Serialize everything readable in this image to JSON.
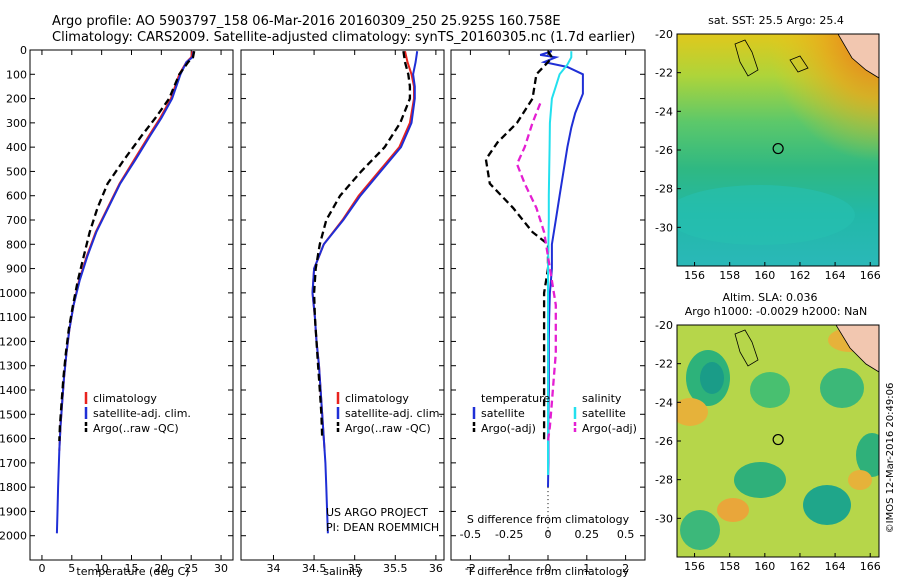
{
  "header": {
    "line1": "Argo profile: AO 5903797_158 06-Mar-2016 20160309_250 25.925S 160.758E",
    "line2": "Climatology: CARS2009. Satellite-adjusted climatology: synTS_20160305.nc (1.7d earlier)"
  },
  "credit": {
    "project": "US ARGO PROJECT",
    "pi": "PI: DEAN ROEMMICH",
    "stamp": "©IMOS 12-Mar-2016 20:49:06"
  },
  "colors": {
    "climatology": "#e8231e",
    "satellite": "#1f2fd6",
    "argo": "#000000",
    "sal_satellite": "#22e0ee",
    "sal_argo": "#e41fd2"
  },
  "chart_data": [
    {
      "id": "temperature",
      "type": "line",
      "xlabel": "temperature (deg C)",
      "ylabel": "",
      "xlim": [
        -2,
        32
      ],
      "ylim": [
        2100,
        0
      ],
      "xticks": [
        0,
        5,
        10,
        15,
        20,
        25,
        30
      ],
      "yticks": [
        0,
        100,
        200,
        300,
        400,
        500,
        600,
        700,
        800,
        900,
        1000,
        1100,
        1200,
        1300,
        1400,
        1500,
        1600,
        1700,
        1800,
        1900,
        2000
      ],
      "legend": [
        "climatology",
        "satellite-adj. clim.",
        "Argo(..raw -QC)"
      ],
      "legend_position": "lower-right",
      "series": [
        {
          "name": "climatology",
          "style": "solid",
          "color": "#e8231e",
          "points": [
            [
              25.2,
              5
            ],
            [
              25.0,
              30
            ],
            [
              24.2,
              50
            ],
            [
              23.0,
              100
            ],
            [
              21.6,
              200
            ],
            [
              19.8,
              280
            ],
            [
              18.0,
              350
            ],
            [
              15.5,
              450
            ],
            [
              13.0,
              550
            ],
            [
              11.0,
              650
            ],
            [
              9.0,
              750
            ],
            [
              7.5,
              850
            ],
            [
              6.2,
              950
            ],
            [
              5.3,
              1050
            ],
            [
              4.6,
              1150
            ],
            [
              4.1,
              1250
            ],
            [
              3.7,
              1350
            ],
            [
              3.4,
              1450
            ],
            [
              3.1,
              1550
            ],
            [
              2.9,
              1650
            ]
          ]
        },
        {
          "name": "satellite-adj. clim.",
          "style": "solid",
          "color": "#1f2fd6",
          "points": [
            [
              25.4,
              5
            ],
            [
              25.2,
              30
            ],
            [
              24.2,
              50
            ],
            [
              23.2,
              100
            ],
            [
              21.8,
              200
            ],
            [
              20.0,
              280
            ],
            [
              18.2,
              350
            ],
            [
              15.7,
              450
            ],
            [
              13.1,
              550
            ],
            [
              11.1,
              650
            ],
            [
              9.1,
              750
            ],
            [
              7.6,
              850
            ],
            [
              6.3,
              950
            ],
            [
              5.3,
              1050
            ],
            [
              4.6,
              1150
            ],
            [
              4.1,
              1250
            ],
            [
              3.7,
              1350
            ],
            [
              3.4,
              1450
            ],
            [
              3.1,
              1550
            ],
            [
              2.9,
              1650
            ],
            [
              2.7,
              1800
            ],
            [
              2.6,
              1900
            ],
            [
              2.5,
              1990
            ]
          ]
        },
        {
          "name": "Argo(..raw -QC)",
          "style": "dashed",
          "color": "#000000",
          "points": [
            [
              25.5,
              5
            ],
            [
              25.3,
              30
            ],
            [
              24.5,
              50
            ],
            [
              23.0,
              100
            ],
            [
              21.3,
              200
            ],
            [
              19.0,
              280
            ],
            [
              16.8,
              350
            ],
            [
              13.8,
              450
            ],
            [
              11.0,
              550
            ],
            [
              9.3,
              650
            ],
            [
              8.0,
              750
            ],
            [
              7.0,
              850
            ],
            [
              6.0,
              950
            ],
            [
              5.2,
              1050
            ],
            [
              4.5,
              1150
            ],
            [
              4.0,
              1250
            ],
            [
              3.6,
              1350
            ],
            [
              3.3,
              1450
            ],
            [
              3.0,
              1550
            ],
            [
              2.9,
              1610
            ]
          ]
        }
      ]
    },
    {
      "id": "salinity",
      "type": "line",
      "xlabel": "salinity",
      "ylabel": "",
      "xlim": [
        33.6,
        36.1
      ],
      "ylim": [
        2100,
        0
      ],
      "xticks": [
        34,
        34.5,
        35,
        35.5,
        36
      ],
      "legend": [
        "climatology",
        "satellite-adj. clim.",
        "Argo(..raw -QC)"
      ],
      "legend_position": "lower-right",
      "series": [
        {
          "name": "climatology",
          "style": "solid",
          "color": "#e8231e",
          "points": [
            [
              35.62,
              5
            ],
            [
              35.65,
              50
            ],
            [
              35.7,
              100
            ],
            [
              35.73,
              150
            ],
            [
              35.73,
              200
            ],
            [
              35.68,
              300
            ],
            [
              35.55,
              400
            ],
            [
              35.3,
              500
            ],
            [
              35.05,
              600
            ],
            [
              34.85,
              700
            ],
            [
              34.62,
              800
            ],
            [
              34.5,
              900
            ],
            [
              34.48,
              1000
            ],
            [
              34.51,
              1100
            ],
            [
              34.53,
              1200
            ],
            [
              34.56,
              1300
            ],
            [
              34.58,
              1400
            ],
            [
              34.6,
              1500
            ],
            [
              34.62,
              1600
            ],
            [
              34.63,
              1650
            ]
          ]
        },
        {
          "name": "satellite-adj. clim.",
          "style": "solid",
          "color": "#1f2fd6",
          "points": [
            [
              35.77,
              5
            ],
            [
              35.75,
              50
            ],
            [
              35.72,
              100
            ],
            [
              35.74,
              150
            ],
            [
              35.74,
              200
            ],
            [
              35.7,
              300
            ],
            [
              35.57,
              400
            ],
            [
              35.32,
              500
            ],
            [
              35.07,
              600
            ],
            [
              34.86,
              700
            ],
            [
              34.62,
              800
            ],
            [
              34.5,
              900
            ],
            [
              34.48,
              1000
            ],
            [
              34.51,
              1100
            ],
            [
              34.53,
              1200
            ],
            [
              34.56,
              1300
            ],
            [
              34.58,
              1400
            ],
            [
              34.6,
              1500
            ],
            [
              34.62,
              1600
            ],
            [
              34.64,
              1700
            ],
            [
              34.65,
              1800
            ],
            [
              34.66,
              1900
            ],
            [
              34.67,
              1990
            ]
          ]
        },
        {
          "name": "Argo(..raw -QC)",
          "style": "dashed",
          "color": "#000000",
          "points": [
            [
              35.6,
              5
            ],
            [
              35.62,
              50
            ],
            [
              35.66,
              100
            ],
            [
              35.68,
              150
            ],
            [
              35.68,
              200
            ],
            [
              35.56,
              300
            ],
            [
              35.37,
              400
            ],
            [
              35.08,
              500
            ],
            [
              34.82,
              600
            ],
            [
              34.65,
              700
            ],
            [
              34.57,
              800
            ],
            [
              34.52,
              900
            ],
            [
              34.5,
              1000
            ],
            [
              34.51,
              1100
            ],
            [
              34.53,
              1200
            ],
            [
              34.55,
              1300
            ],
            [
              34.57,
              1400
            ],
            [
              34.59,
              1500
            ],
            [
              34.6,
              1600
            ]
          ]
        }
      ]
    },
    {
      "id": "difference",
      "type": "line",
      "xlabel": "T difference from climatology",
      "x2label": "S difference from climatology",
      "xlim": [
        -2.5,
        2.5
      ],
      "x2lim": [
        -0.625,
        0.625
      ],
      "ylim": [
        2100,
        0
      ],
      "xticks": [
        -2,
        -1,
        0,
        1,
        2
      ],
      "x2ticks": [
        "-0.5",
        "-0.25",
        "0",
        "0.25",
        "0.5"
      ],
      "legend_temperature": {
        "header": "temperature",
        "items": [
          "satellite",
          "Argo(-adj)"
        ]
      },
      "legend_salinity": {
        "header": "salinity",
        "items": [
          "satellite",
          "Argo(-adj)"
        ]
      },
      "series": [
        {
          "name": "temperature satellite",
          "style": "solid",
          "color": "#1f2fd6",
          "points": [
            [
              0.1,
              5
            ],
            [
              -0.2,
              20
            ],
            [
              0.2,
              30
            ],
            [
              -0.1,
              50
            ],
            [
              0.5,
              70
            ],
            [
              0.9,
              100
            ],
            [
              0.9,
              180
            ],
            [
              0.7,
              260
            ],
            [
              0.6,
              320
            ],
            [
              0.5,
              400
            ],
            [
              0.4,
              500
            ],
            [
              0.3,
              600
            ],
            [
              0.2,
              700
            ],
            [
              0.1,
              800
            ],
            [
              0.1,
              900
            ],
            [
              0.05,
              1000
            ],
            [
              0.03,
              1100
            ],
            [
              0.02,
              1200
            ],
            [
              0.02,
              1300
            ],
            [
              0.02,
              1400
            ],
            [
              0.01,
              1500
            ],
            [
              0.01,
              1600
            ],
            [
              0.01,
              1700
            ],
            [
              0.0,
              1800
            ]
          ]
        },
        {
          "name": "temperature Argo(-adj)",
          "style": "dashed",
          "color": "#000000",
          "points": [
            [
              0.0,
              5
            ],
            [
              0.1,
              30
            ],
            [
              0.0,
              50
            ],
            [
              -0.3,
              100
            ],
            [
              -0.4,
              200
            ],
            [
              -0.8,
              300
            ],
            [
              -1.3,
              380
            ],
            [
              -1.6,
              450
            ],
            [
              -1.5,
              550
            ],
            [
              -0.9,
              650
            ],
            [
              -0.4,
              750
            ],
            [
              0.0,
              800
            ],
            [
              0.0,
              900
            ],
            [
              -0.1,
              1000
            ],
            [
              -0.1,
              1100
            ],
            [
              -0.1,
              1200
            ],
            [
              -0.1,
              1300
            ],
            [
              -0.1,
              1400
            ],
            [
              -0.1,
              1500
            ],
            [
              -0.1,
              1610
            ]
          ]
        },
        {
          "name": "salinity satellite",
          "style": "solid",
          "color": "#22e0ee",
          "points": [
            [
              0.6,
              5
            ],
            [
              0.6,
              30
            ],
            [
              0.5,
              60
            ],
            [
              0.3,
              100
            ],
            [
              0.2,
              150
            ],
            [
              0.1,
              200
            ],
            [
              0.05,
              300
            ],
            [
              0.04,
              400
            ],
            [
              0.03,
              500
            ],
            [
              0.02,
              600
            ],
            [
              0.02,
              700
            ],
            [
              0.01,
              800
            ],
            [
              0.0,
              900
            ],
            [
              0.0,
              1000
            ],
            [
              0.0,
              1100
            ],
            [
              0.0,
              1200
            ],
            [
              0.0,
              1300
            ],
            [
              0.0,
              1400
            ],
            [
              0.0,
              1500
            ],
            [
              0.0,
              1600
            ],
            [
              0.0,
              1700
            ],
            [
              0.0,
              1750
            ]
          ]
        },
        {
          "name": "salinity Argo(-adj)",
          "style": "dashed",
          "color": "#e41fd2",
          "points": [
            [
              -0.2,
              220
            ],
            [
              -0.4,
              300
            ],
            [
              -0.6,
              400
            ],
            [
              -0.8,
              470
            ],
            [
              -0.6,
              550
            ],
            [
              -0.3,
              650
            ],
            [
              -0.1,
              750
            ],
            [
              0.0,
              850
            ],
            [
              0.1,
              950
            ],
            [
              0.2,
              1050
            ],
            [
              0.2,
              1150
            ],
            [
              0.2,
              1250
            ],
            [
              0.15,
              1350
            ],
            [
              0.1,
              1450
            ],
            [
              0.05,
              1550
            ],
            [
              0.0,
              1610
            ]
          ]
        },
        {
          "name": "zero",
          "style": "dotted",
          "color": "#000000",
          "points": [
            [
              0,
              1800
            ],
            [
              0,
              2000
            ]
          ]
        }
      ]
    },
    {
      "id": "sst-map",
      "type": "heatmap",
      "title": "sat. SST: 25.5  Argo: 25.4",
      "xticks": [
        156,
        158,
        160,
        162,
        164,
        166
      ],
      "yticks": [
        -20,
        -22,
        -24,
        -26,
        -28,
        -30
      ],
      "xlim": [
        155,
        166.5
      ],
      "ylim": [
        -32,
        -20
      ],
      "marker": {
        "lon": 160.758,
        "lat": -25.925
      }
    },
    {
      "id": "sla-map",
      "type": "heatmap",
      "title1": "Altim. SLA: 0.036",
      "title2": "Argo h1000: -0.0029  h2000: NaN",
      "xticks": [
        156,
        158,
        160,
        162,
        164,
        166
      ],
      "yticks": [
        -20,
        -22,
        -24,
        -26,
        -28,
        -30
      ],
      "xlim": [
        155,
        166.5
      ],
      "ylim": [
        -32,
        -20
      ],
      "marker": {
        "lon": 160.758,
        "lat": -25.925
      }
    }
  ]
}
